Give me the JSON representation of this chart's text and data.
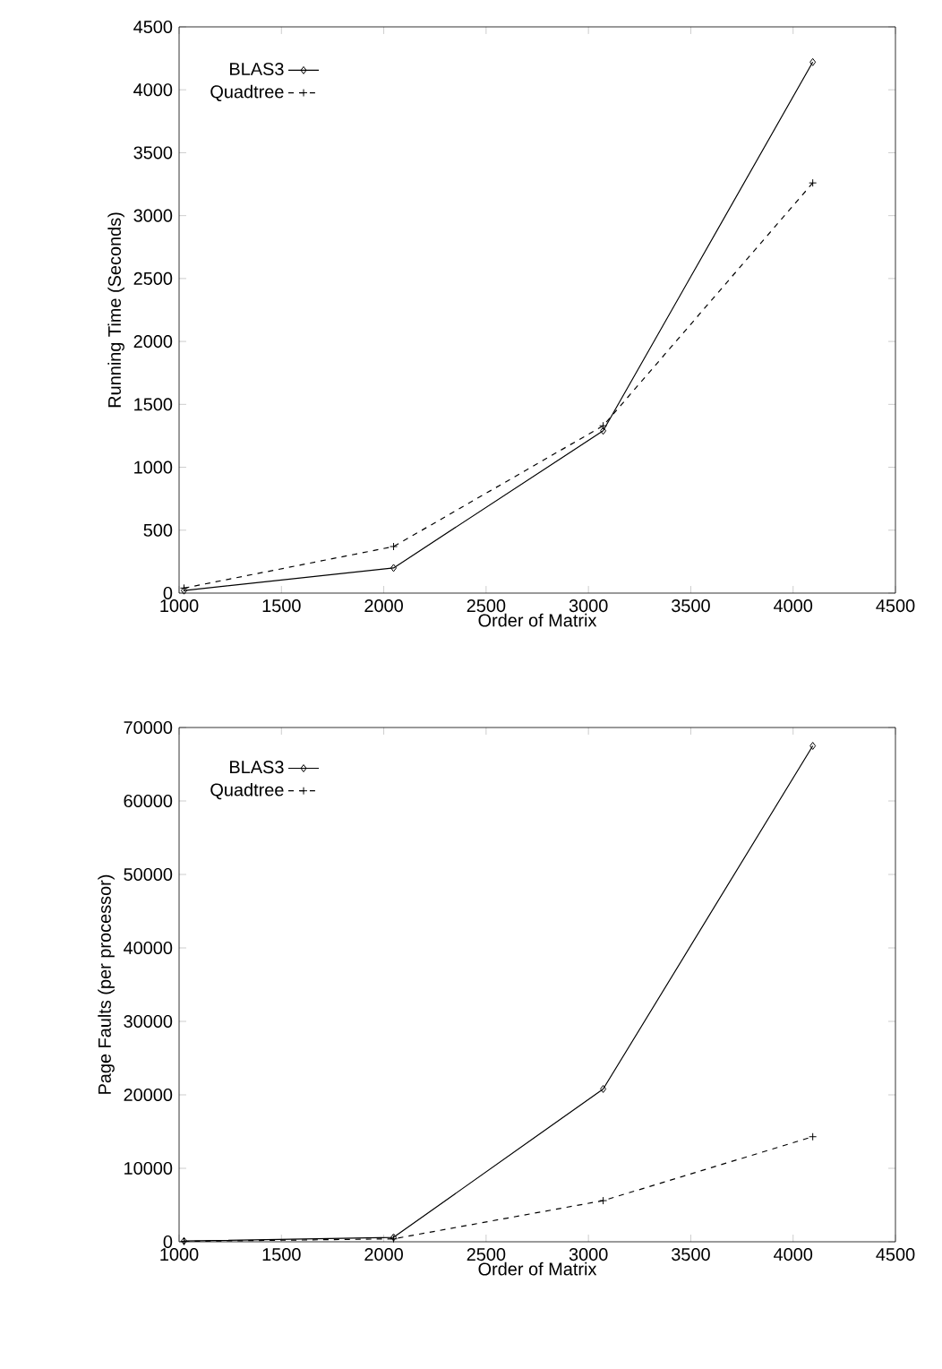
{
  "chart_data": [
    {
      "type": "line",
      "xlabel": "Order of Matrix",
      "ylabel": "Running Time (Seconds)",
      "xlim": [
        1000,
        4500
      ],
      "xticks": [
        1000,
        1500,
        2000,
        2500,
        3000,
        3500,
        4000,
        4500
      ],
      "ylim": [
        0,
        4500
      ],
      "yticks": [
        0,
        500,
        1000,
        1500,
        2000,
        2500,
        3000,
        3500,
        4000,
        4500
      ],
      "legend": "top left",
      "grid": false,
      "x": [
        1024,
        2048,
        3072,
        4096
      ],
      "series": [
        {
          "name": "BLAS3",
          "color": "#000000",
          "marker": "diamond",
          "line_style": "solid",
          "values": [
            20,
            200,
            1290,
            4220
          ]
        },
        {
          "name": "Quadtree",
          "color": "#000000",
          "marker": "cross",
          "line_style": "dashed",
          "values": [
            40,
            370,
            1330,
            3260
          ]
        }
      ]
    },
    {
      "type": "line",
      "xlabel": "Order of Matrix",
      "ylabel": "Page Faults (per processor)",
      "xlim": [
        1000,
        4500
      ],
      "xticks": [
        1000,
        1500,
        2000,
        2500,
        3000,
        3500,
        4000,
        4500
      ],
      "ylim": [
        0,
        70000
      ],
      "yticks": [
        0,
        10000,
        20000,
        30000,
        40000,
        50000,
        60000,
        70000
      ],
      "legend": "top left",
      "grid": false,
      "x": [
        1024,
        2048,
        3072,
        4096
      ],
      "series": [
        {
          "name": "BLAS3",
          "color": "#000000",
          "marker": "diamond",
          "line_style": "solid",
          "values": [
            100,
            600,
            20800,
            67500
          ]
        },
        {
          "name": "Quadtree",
          "color": "#000000",
          "marker": "cross",
          "line_style": "dashed",
          "values": [
            50,
            400,
            5600,
            14300
          ]
        }
      ]
    }
  ]
}
